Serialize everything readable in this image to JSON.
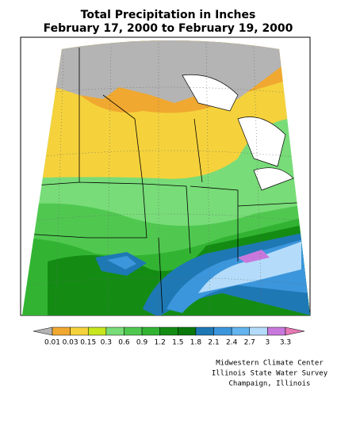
{
  "title": "Total Precipitation in Inches",
  "subtitle": "February 17, 2000 to February 19, 2000",
  "legend": {
    "values": [
      0.01,
      0.03,
      0.15,
      0.3,
      0.6,
      0.9,
      1.2,
      1.5,
      1.8,
      2.1,
      2.4,
      2.7,
      3,
      3.3
    ],
    "colors": [
      "#b4b4b4",
      "#f0a830",
      "#f5d23c",
      "#c8e61e",
      "#78dc78",
      "#50c850",
      "#32b432",
      "#148c14",
      "#0a780a",
      "#1e78b4",
      "#3c96dc",
      "#64b4f0",
      "#b4dcfa",
      "#c878dc",
      "#e678b4"
    ]
  },
  "credits": [
    "Midwestern Climate Center",
    "Illinois State Water Survey",
    "Champaign, Illinois"
  ]
}
